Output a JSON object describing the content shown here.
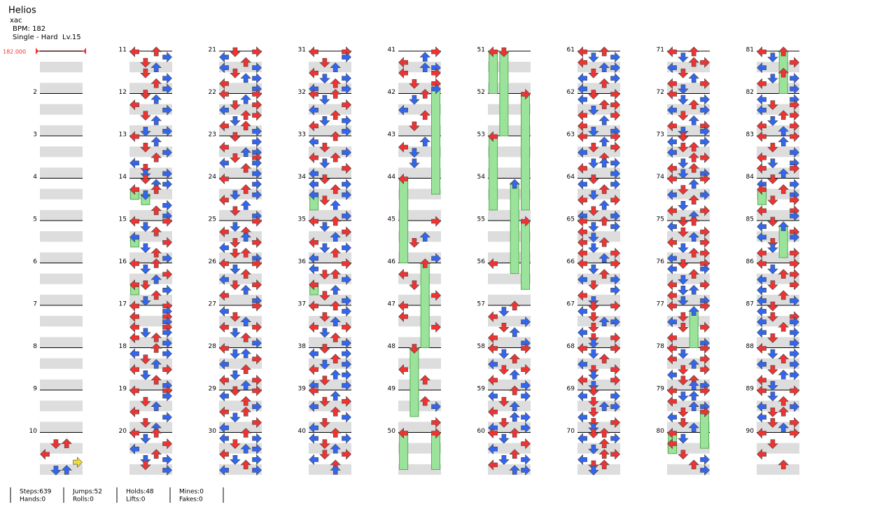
{
  "header": {
    "title": "Helios",
    "artist": "xac",
    "bpm": "BPM: 182",
    "difficulty": "Single - Hard  Lv.15",
    "bpm_marker": "182.000"
  },
  "measure_labels": [
    null,
    2,
    3,
    4,
    5,
    6,
    7,
    8,
    9,
    10,
    11,
    12,
    13,
    14,
    15,
    16,
    17,
    18,
    19,
    20,
    21,
    22,
    23,
    24,
    25,
    26,
    27,
    28,
    29,
    30,
    31,
    32,
    33,
    34,
    35,
    36,
    37,
    38,
    39,
    40,
    41,
    42,
    43,
    44,
    45,
    46,
    47,
    48,
    49,
    50,
    51,
    52,
    53,
    54,
    55,
    56,
    57,
    58,
    59,
    60,
    61,
    62,
    63,
    64,
    65,
    66,
    67,
    68,
    69,
    70,
    71,
    72,
    73,
    74,
    75,
    76,
    77,
    78,
    79,
    80,
    81,
    82,
    83,
    84,
    85,
    86,
    87,
    88,
    89,
    90
  ],
  "notes": [
    "0000",
    "0000",
    "0000",
    "0000",
    "0000",
    "0000",
    "0000",
    "0000",
    "0000",
    "0000 0000 0000 0000 0110 0000 0000 0000 1000 0000 0000 0001 0000 0000 0110 0000",
    "1010 0001 0100 0010 0100 0001 0010 0001",
    "0100 0010 1000 0001 0100 0010 0000 0101",
    "1000 0010 0100 0001 0010 1000 0100 0101",
    "0100 0011 2010 0200 3000 0301 0010 0001",
    "1001 0100 0010 2000 0001 3100 0010 0001",
    "1010 0100 0001 0010 2100 0001 3010 0100",
    "1001 0001 1001 0001 1001 0101 1010 0001",
    "0010 1001 0100 0010 1001 0100 0010 0001",
    "1001 0001 0100 0010 1000 0001 0100 0010",
    "1010 0100 0001 1000 0010 0101 0100 0001",
    "0101 1000 0010 1001 0100 0011 1000 0001",
    "1001 0010 0101 1000 0011 0100 1010 0001",
    "0100 0001 1000 0011 0101 1001 0010 0001",
    "1000 0001 0010 0101 1000 0010 0100 0001",
    "0001 0100 1010 0010 0101 1000 0110 0001",
    "1001 0100 0010 1000 0101 0010 1000 0001",
    "0001 1000 0100 0010 1001 0100 0010 0001",
    "1000 0110 0001 1000 0010 0100 1001 0010",
    "0101 1000 0010 0001 1010 0100 0001 1000",
    "0010 1001 0100 0011 1000 0101 0010 1001",
    "1001 0001 0100 0010 1000 0101 0010 1001",
    "1010 0100 0001 1000 0010 0101 1000 0001",
    "0010 1000 0100 0001 1010 0100 0001 1000",
    "0100 1001 0010 2001 0100 0010 3000 0001",
    "1010 0100 0001 0010 1000 0101 0010 1000",
    "0001 1000 0110 0001 2000 0010 3100 0001",
    "1010 0001 0100 0010 1001 0100 0010 0001",
    "0100 1001 0010 0101 1000 0011 0100 1001",
    "1000 0010 0101 1000 0010 0001 0100 1000",
    "0010 1001 0100 0010 0101 1000 0010 0010",
    "0001 0010 1000 0011 1001 0000 0101 0002",
    "0010 0100 0000 1000 0010 0000 0100 0000",
    "0000 0010 1000 0100 0000 0100 0000 0000",
    "2000 0000 0000 0003 0000 0000 0000 0000",
    "0001 0000 0000 0010 0100 0000 0000 0001",
    "3020 0000 1000 0000 0100 0000 0001 0000",
    "1000 0000 1000 0000 0001 0000 0000 0000",
    "0230 0000 0000 0000 1000 0000 0010 0000",
    "0000 0000 0010 0001 0000 0300 0001 0000",
    "2002 0000 0000 0000 0000 0000 0000 3003",
    "2200 0000 0000 0000 0000 0000 0000 0000",
    "3002 0000 0000 0000 0000 0000 0000 0000",
    "2300 0000 0000 0000 0000 0000 0000 0000",
    "0000 0020 0000 0000 0000 0000 3003 0000",
    "0002 0000 0000 0000 0000 0000 0000 0000",
    "1000 0000 0030 0000 0000 0003 0000 0000",
    "0010 0100 1000 0001 0100 0010 1000 0001",
    "1001 0100 0010 1000 0101 0010 1000 0001",
    "0010 1001 0100 0010 1000 0011 0100 1001",
    "1010 0100 0001 1000 0010 0101 1000 0011",
    "1010 0101 1000 0011 0100 1001 0010 1000",
    "0101 1000 0011 0100 1001 0010 1000 0101",
    "1001 0010 0101 1000 0010 0111 1000 0001",
    "0100 1001 0010 0100 1001 0010 0100 1001",
    "1010 0101 1000 0100 1010 0100 1001 0010",
    "1001 0100 0010 1001 0100 0001 1000 0100",
    "0101 1000 0100 0011 0100 1000 0101 0100",
    "1001 0100 0010 1000 0101 0100 1001 0100",
    "0100 1001 0100 0011 0100 1000 0101 0100",
    "0110 1001 0010 0100 0011 1000 0110 0100",
    "1010 0100 0011 1000 0100 0010 1001 0100",
    "1000 0101 0010 1001 0100 0010 1001 0101",
    "0100 1001 0110 1000 0011 0100 1010 0101",
    "1001 0010 0100 1001 0010 0100 1001 0010",
    "0110 1000 0101 0010 1001 0100 0011 1000",
    "0101 1001 0010 0100 1001 0110 1000 0101",
    "1001 0020 0100 1000 0101 0000 1000 0001",
    "1031 0100 1001 0010 0101 1000 0110 0011",
    "1001 0110 1000 0011 0102 1000 0100 0010",
    "2000 0100 1000 0003 3100 0001 0010 0001",
    "1020 0100 0001 1000 0010 0101 1000 0001",
    "0030 1001 0101 1000 0011 0100 1001 0010",
    "1001 0010 0100 0001 1000 0101 1001 0010",
    "0100 1001 2010 0001 0101 3000 1001 0001",
    "0100 1020 0001 1001 0100 0100 1001 0030",
    "1001 0100 0011 1000 0101 1000 0010 1001",
    "0100 1000 0101 1001 0010 1001 0100 0001",
    "1000 0101 0010 1001 0100 0011 1000 0100",
    "1001 0100 0010 1001 0110 1000 0101 0010",
    "1001 0000 0100 0000 1000 0000 0010 0000"
  ],
  "stats": [
    [
      "Steps:639",
      "Hands:0"
    ],
    [
      "Jumps:52",
      "Rolls:0"
    ],
    [
      "Holds:48",
      "Lifts:0"
    ],
    [
      "Mines:0",
      "Fakes:0"
    ]
  ]
}
